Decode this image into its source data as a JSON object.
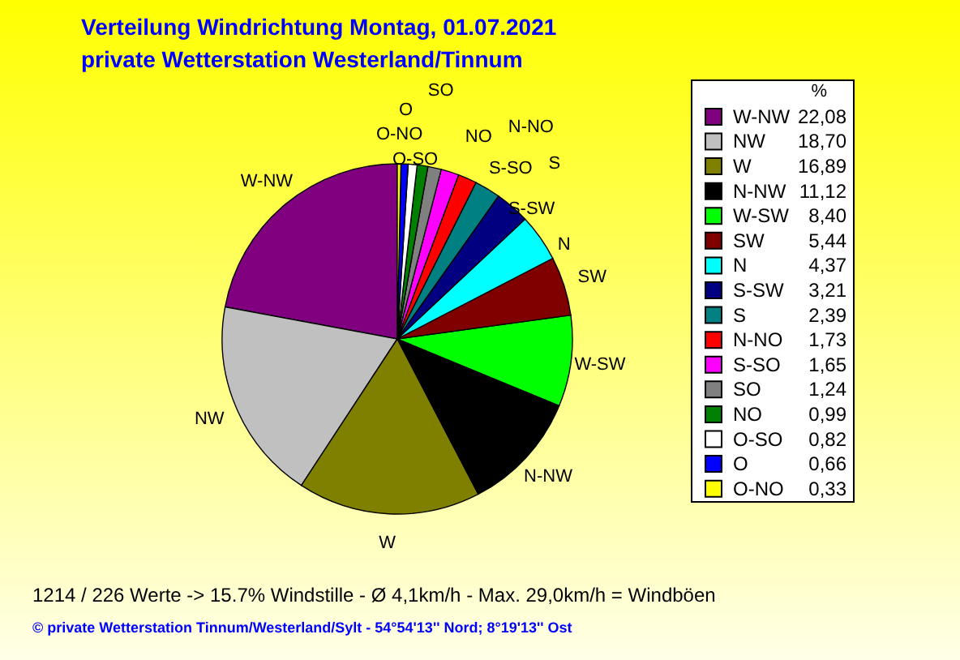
{
  "chart_data": {
    "type": "pie",
    "title": "Verteilung Windrichtung   Montag, 01.07.2021",
    "subtitle": "private Wetterstation Westerland/Tinnum",
    "categories": [
      "W-NW",
      "NW",
      "W",
      "N-NW",
      "W-SW",
      "SW",
      "N",
      "S-SW",
      "S",
      "N-NO",
      "S-SO",
      "SO",
      "NO",
      "O-SO",
      "O",
      "O-NO"
    ],
    "values": [
      22.08,
      18.7,
      16.89,
      11.12,
      8.4,
      5.44,
      4.37,
      3.21,
      2.39,
      1.73,
      1.65,
      1.24,
      0.99,
      0.82,
      0.66,
      0.33
    ],
    "value_labels": [
      "22,08",
      "18,70",
      "16,89",
      "11,12",
      "8,40",
      "5,44",
      "4,37",
      "3,21",
      "2,39",
      "1,73",
      "1,65",
      "1,24",
      "0,99",
      "0,82",
      "0,66",
      "0,33"
    ],
    "colors": [
      "#800080",
      "#c0c0c0",
      "#808000",
      "#000000",
      "#00ff00",
      "#800000",
      "#00ffff",
      "#000080",
      "#008080",
      "#ff0000",
      "#ff00ff",
      "#808080",
      "#008000",
      "#ffffff",
      "#0000ff",
      "#ffff00"
    ],
    "legend": "right",
    "legend_title": "%",
    "annotations": [
      "1214 / 226 Werte  -> 15.7% Windstille   -   Ø 4,1km/h  -  Max. 29,0km/h = Windböen",
      "© private Wetterstation Tinnum/Westerland/Sylt   -   54°54'13'' Nord; 8°19'13'' Ost"
    ]
  }
}
